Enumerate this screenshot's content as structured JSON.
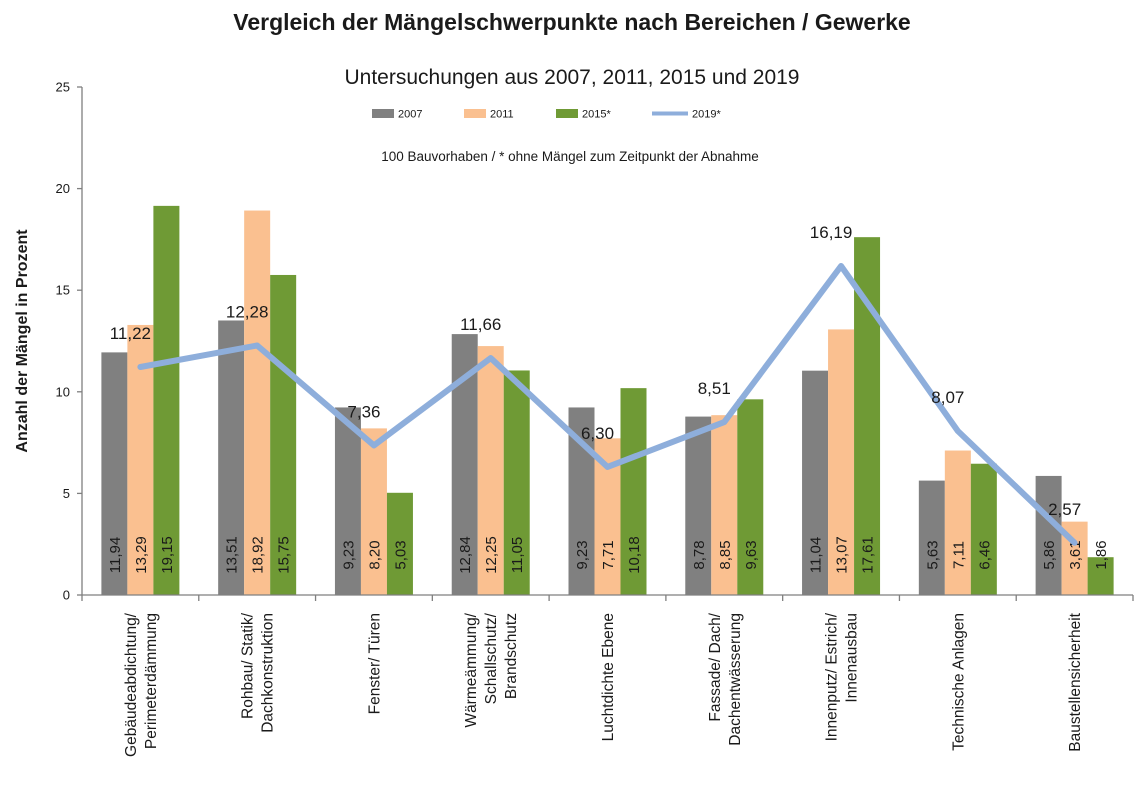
{
  "chart_data": {
    "type": "bar",
    "title": "Vergleich der Mängelschwerpunkte nach Bereichen / Gewerke",
    "subtitle": "Untersuchungen aus 2007, 2011, 2015 und 2019",
    "note": "100 Bauvorhaben / * ohne Mängel zum Zeitpunkt der Abnahme",
    "ylabel": "Anzahl der Mängel in Prozent",
    "xlabel": "",
    "ylim": [
      0,
      25
    ],
    "yticks": [
      "0",
      "5",
      "10",
      "15",
      "20",
      "25"
    ],
    "ytick_values": [
      0,
      5,
      10,
      15,
      20,
      25
    ],
    "grid": false,
    "legend_position": "top",
    "categories": [
      [
        "Gebäudeabdichtung/",
        "Perimeterdämmung"
      ],
      [
        "Rohbau/ Statik/",
        "Dachkonstruktion"
      ],
      [
        "Fenster/ Türen"
      ],
      [
        "Wärmeämmung/",
        "Schallschutz/",
        "Brandschutz"
      ],
      [
        "Luchtdichte Ebene"
      ],
      [
        "Fassade/ Dach/",
        "Dachentwässerung"
      ],
      [
        "Innenputz/ Estrich/",
        "Innenausbau"
      ],
      [
        "Technische Anlagen"
      ],
      [
        "Baustellensicherheit"
      ]
    ],
    "series": [
      {
        "name": "2007",
        "kind": "bar",
        "color": "#808080",
        "values": [
          11.94,
          13.51,
          9.23,
          12.84,
          9.23,
          8.78,
          11.04,
          5.63,
          5.86
        ],
        "labels": [
          "11,94",
          "13,51",
          "9,23",
          "12,84",
          "9,23",
          "8,78",
          "11,04",
          "5,63",
          "5,86"
        ]
      },
      {
        "name": "2011",
        "kind": "bar",
        "color": "#fac090",
        "values": [
          13.29,
          18.92,
          8.2,
          12.25,
          7.71,
          8.85,
          13.07,
          7.11,
          3.61
        ],
        "labels": [
          "13,29",
          "18,92",
          "8,20",
          "12,25",
          "7,71",
          "8,85",
          "13,07",
          "7,11",
          "3,61"
        ]
      },
      {
        "name": "2015*",
        "kind": "bar",
        "color": "#6f9a35",
        "values": [
          19.15,
          15.75,
          5.03,
          11.05,
          10.18,
          9.63,
          17.61,
          6.46,
          1.86
        ],
        "labels": [
          "19,15",
          "15,75",
          "5,03",
          "11,05",
          "10,18",
          "9,63",
          "17,61",
          "6,46",
          "1,86"
        ]
      },
      {
        "name": "2019*",
        "kind": "line",
        "color": "#8eaedb",
        "values": [
          11.22,
          12.28,
          7.36,
          11.66,
          6.3,
          8.51,
          16.19,
          8.07,
          2.57
        ],
        "labels": [
          "11,22",
          "12,28",
          "7,36",
          "11,66",
          "6,30",
          "8,51",
          "16,19",
          "8,07",
          "2,57"
        ]
      }
    ]
  }
}
